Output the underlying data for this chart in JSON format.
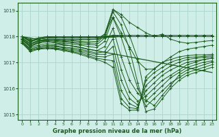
{
  "xlabel": "Graphe pression niveau de la mer (hPa)",
  "ylabel": "",
  "bg_color": "#d0eee8",
  "grid_color": "#b0d8d0",
  "line_color": "#1a5c1a",
  "xlim": [
    -0.5,
    23.5
  ],
  "ylim": [
    1014.8,
    1019.3
  ],
  "yticks": [
    1015,
    1016,
    1017,
    1018,
    1019
  ],
  "xticks": [
    0,
    1,
    2,
    3,
    4,
    5,
    6,
    7,
    8,
    9,
    10,
    11,
    12,
    13,
    14,
    15,
    16,
    17,
    18,
    19,
    20,
    21,
    22,
    23
  ],
  "series": [
    [
      1018.0,
      1017.8,
      1017.95,
      1018.0,
      1018.0,
      1018.0,
      1018.0,
      1018.0,
      1018.0,
      1018.0,
      1018.0,
      1018.05,
      1018.05,
      1018.05,
      1018.05,
      1018.05,
      1018.05,
      1018.05,
      1018.05,
      1018.05,
      1018.05,
      1018.05,
      1018.05,
      1018.05
    ],
    [
      1018.0,
      1017.85,
      1017.9,
      1017.95,
      1018.0,
      1018.0,
      1018.0,
      1018.0,
      1018.0,
      1018.0,
      1018.0,
      1018.0,
      1018.0,
      1018.0,
      1018.0,
      1018.0,
      1018.0,
      1018.0,
      1018.0,
      1018.0,
      1018.0,
      1018.0,
      1018.0,
      1018.0
    ],
    [
      1018.0,
      1017.9,
      1017.95,
      1018.0,
      1018.0,
      1018.0,
      1018.0,
      1018.0,
      1018.0,
      1018.0,
      1018.0,
      1018.0,
      1018.05,
      1018.05,
      1018.05,
      1018.05,
      1018.05,
      1018.05,
      1018.05,
      1018.05,
      1018.05,
      1018.05,
      1018.05,
      1018.05
    ],
    [
      1018.0,
      1017.85,
      1017.92,
      1017.97,
      1017.98,
      1017.98,
      1017.98,
      1017.98,
      1017.98,
      1017.98,
      1017.98,
      1017.98,
      1018.0,
      1018.0,
      1018.0,
      1018.0,
      1018.0,
      1018.0,
      1018.0,
      1018.0,
      1018.0,
      1018.0,
      1018.0,
      1018.0
    ],
    [
      1018.0,
      1017.8,
      1017.9,
      1017.95,
      1017.95,
      1017.95,
      1017.95,
      1017.95,
      1017.95,
      1017.95,
      1018.0,
      1018.05,
      1018.05,
      1018.05,
      1018.05,
      1018.05,
      1018.05,
      1018.05,
      1018.05,
      1018.05,
      1018.05,
      1018.05,
      1018.05,
      1018.05
    ],
    [
      1017.95,
      1017.75,
      1017.85,
      1017.9,
      1017.9,
      1017.9,
      1017.9,
      1017.9,
      1017.9,
      1017.9,
      1017.95,
      1018.0,
      1018.0,
      1018.0,
      1018.0,
      1018.0,
      1018.0,
      1018.0,
      1018.0,
      1018.0,
      1018.0,
      1018.0,
      1018.0,
      1018.0
    ],
    [
      1017.95,
      1017.7,
      1017.85,
      1017.9,
      1017.9,
      1017.88,
      1017.88,
      1017.88,
      1017.88,
      1017.9,
      1018.1,
      1019.05,
      1018.85,
      1018.55,
      1018.35,
      1018.15,
      1018.0,
      1018.1,
      1017.9,
      1017.8,
      1017.75,
      1017.78,
      1017.82,
      1017.85
    ],
    [
      1017.95,
      1017.7,
      1017.82,
      1017.88,
      1017.88,
      1017.85,
      1017.85,
      1017.82,
      1017.8,
      1017.82,
      1018.1,
      1018.75,
      1018.15,
      1017.6,
      1017.05,
      1016.75,
      1016.75,
      1017.0,
      1017.22,
      1017.42,
      1017.52,
      1017.57,
      1017.62,
      1017.67
    ],
    [
      1017.9,
      1017.65,
      1017.78,
      1017.85,
      1017.85,
      1017.82,
      1017.8,
      1017.78,
      1017.75,
      1017.75,
      1018.05,
      1019.05,
      1018.75,
      1018.05,
      1017.15,
      1015.55,
      1015.35,
      1015.75,
      1016.12,
      1016.52,
      1016.72,
      1016.82,
      1016.92,
      1017.02
    ],
    [
      1017.9,
      1017.65,
      1017.78,
      1017.85,
      1017.82,
      1017.8,
      1017.77,
      1017.72,
      1017.7,
      1017.68,
      1017.95,
      1018.95,
      1018.45,
      1017.52,
      1016.22,
      1015.12,
      1015.22,
      1015.62,
      1016.02,
      1016.32,
      1016.52,
      1016.62,
      1016.72,
      1016.82
    ],
    [
      1017.88,
      1017.62,
      1017.75,
      1017.8,
      1017.78,
      1017.75,
      1017.72,
      1017.68,
      1017.62,
      1017.58,
      1017.82,
      1018.72,
      1017.98,
      1016.98,
      1016.02,
      1015.32,
      1015.62,
      1015.92,
      1016.22,
      1016.42,
      1016.62,
      1016.72,
      1016.82,
      1016.92
    ],
    [
      1017.88,
      1017.58,
      1017.68,
      1017.73,
      1017.7,
      1017.67,
      1017.65,
      1017.6,
      1017.52,
      1017.45,
      1017.62,
      1018.32,
      1017.22,
      1016.32,
      1015.82,
      1015.52,
      1015.82,
      1016.12,
      1016.42,
      1016.62,
      1016.82,
      1016.92,
      1017.02,
      1017.07
    ],
    [
      1017.82,
      1017.52,
      1017.62,
      1017.67,
      1017.65,
      1017.6,
      1017.57,
      1017.52,
      1017.45,
      1017.37,
      1017.42,
      1017.92,
      1016.72,
      1015.87,
      1015.52,
      1015.72,
      1016.02,
      1016.32,
      1016.52,
      1016.72,
      1016.92,
      1017.02,
      1017.12,
      1017.17
    ],
    [
      1017.82,
      1017.52,
      1017.62,
      1017.65,
      1017.62,
      1017.57,
      1017.52,
      1017.47,
      1017.4,
      1017.32,
      1017.32,
      1017.62,
      1016.32,
      1015.62,
      1015.37,
      1015.92,
      1016.22,
      1016.52,
      1016.72,
      1016.87,
      1017.02,
      1017.07,
      1017.12,
      1017.17
    ],
    [
      1017.77,
      1017.47,
      1017.57,
      1017.6,
      1017.57,
      1017.52,
      1017.47,
      1017.42,
      1017.34,
      1017.24,
      1017.22,
      1017.32,
      1015.92,
      1015.42,
      1015.27,
      1016.12,
      1016.42,
      1016.67,
      1016.87,
      1017.02,
      1017.12,
      1017.17,
      1017.2,
      1017.22
    ],
    [
      1017.77,
      1017.47,
      1017.54,
      1017.57,
      1017.54,
      1017.5,
      1017.42,
      1017.37,
      1017.27,
      1017.17,
      1017.12,
      1017.07,
      1015.62,
      1015.27,
      1015.22,
      1016.32,
      1016.62,
      1016.82,
      1017.02,
      1017.12,
      1017.2,
      1017.22,
      1017.24,
      1017.27
    ],
    [
      1017.74,
      1017.42,
      1017.52,
      1017.54,
      1017.52,
      1017.46,
      1017.4,
      1017.32,
      1017.22,
      1017.12,
      1017.02,
      1016.82,
      1015.42,
      1015.17,
      1015.17,
      1016.47,
      1016.77,
      1017.02,
      1017.12,
      1017.22,
      1017.27,
      1017.3,
      1017.3,
      1017.32
    ]
  ],
  "trend_line": [
    1018.0,
    1017.95,
    1017.88,
    1017.82,
    1017.76,
    1017.7,
    1017.64,
    1017.58,
    1017.52,
    1017.46,
    1017.4,
    1017.34,
    1017.28,
    1017.22,
    1017.16,
    1017.1,
    1017.04,
    1016.98,
    1016.92,
    1016.86,
    1016.8,
    1016.74,
    1016.68,
    1016.62
  ]
}
